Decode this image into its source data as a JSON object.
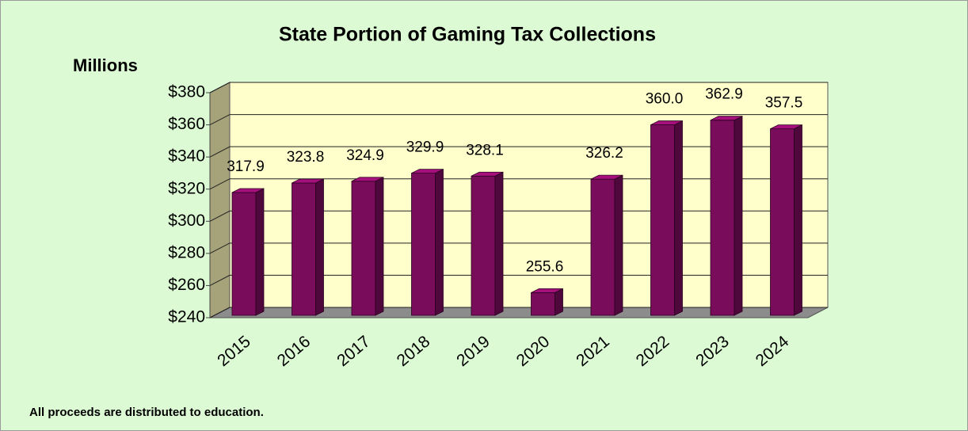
{
  "chart_data": {
    "type": "bar3d",
    "title": "State Portion of Gaming Tax Collections",
    "y_label": "Millions",
    "footnote": "All proceeds are distributed to education.",
    "categories": [
      "2015",
      "2016",
      "2017",
      "2018",
      "2019",
      "2020",
      "2021",
      "2022",
      "2023",
      "2024"
    ],
    "values": [
      317.9,
      323.8,
      324.9,
      329.9,
      328.1,
      255.6,
      326.2,
      360.0,
      362.9,
      357.5
    ],
    "value_labels": [
      "317.9",
      "323.8",
      "324.9",
      "329.9",
      "328.1",
      "255.6",
      "326.2",
      "360.0",
      "362.9",
      "357.5"
    ],
    "color": "#7a0c5c",
    "ylim": [
      240,
      380
    ],
    "yticks": [
      {
        "value": 240,
        "label": "$240"
      },
      {
        "value": 260,
        "label": "$260"
      },
      {
        "value": 280,
        "label": "$280"
      },
      {
        "value": 300,
        "label": "$300"
      },
      {
        "value": 320,
        "label": "$320"
      },
      {
        "value": 340,
        "label": "$340"
      },
      {
        "value": 360,
        "label": "$360"
      },
      {
        "value": 380,
        "label": "$380"
      }
    ],
    "grid": true
  }
}
